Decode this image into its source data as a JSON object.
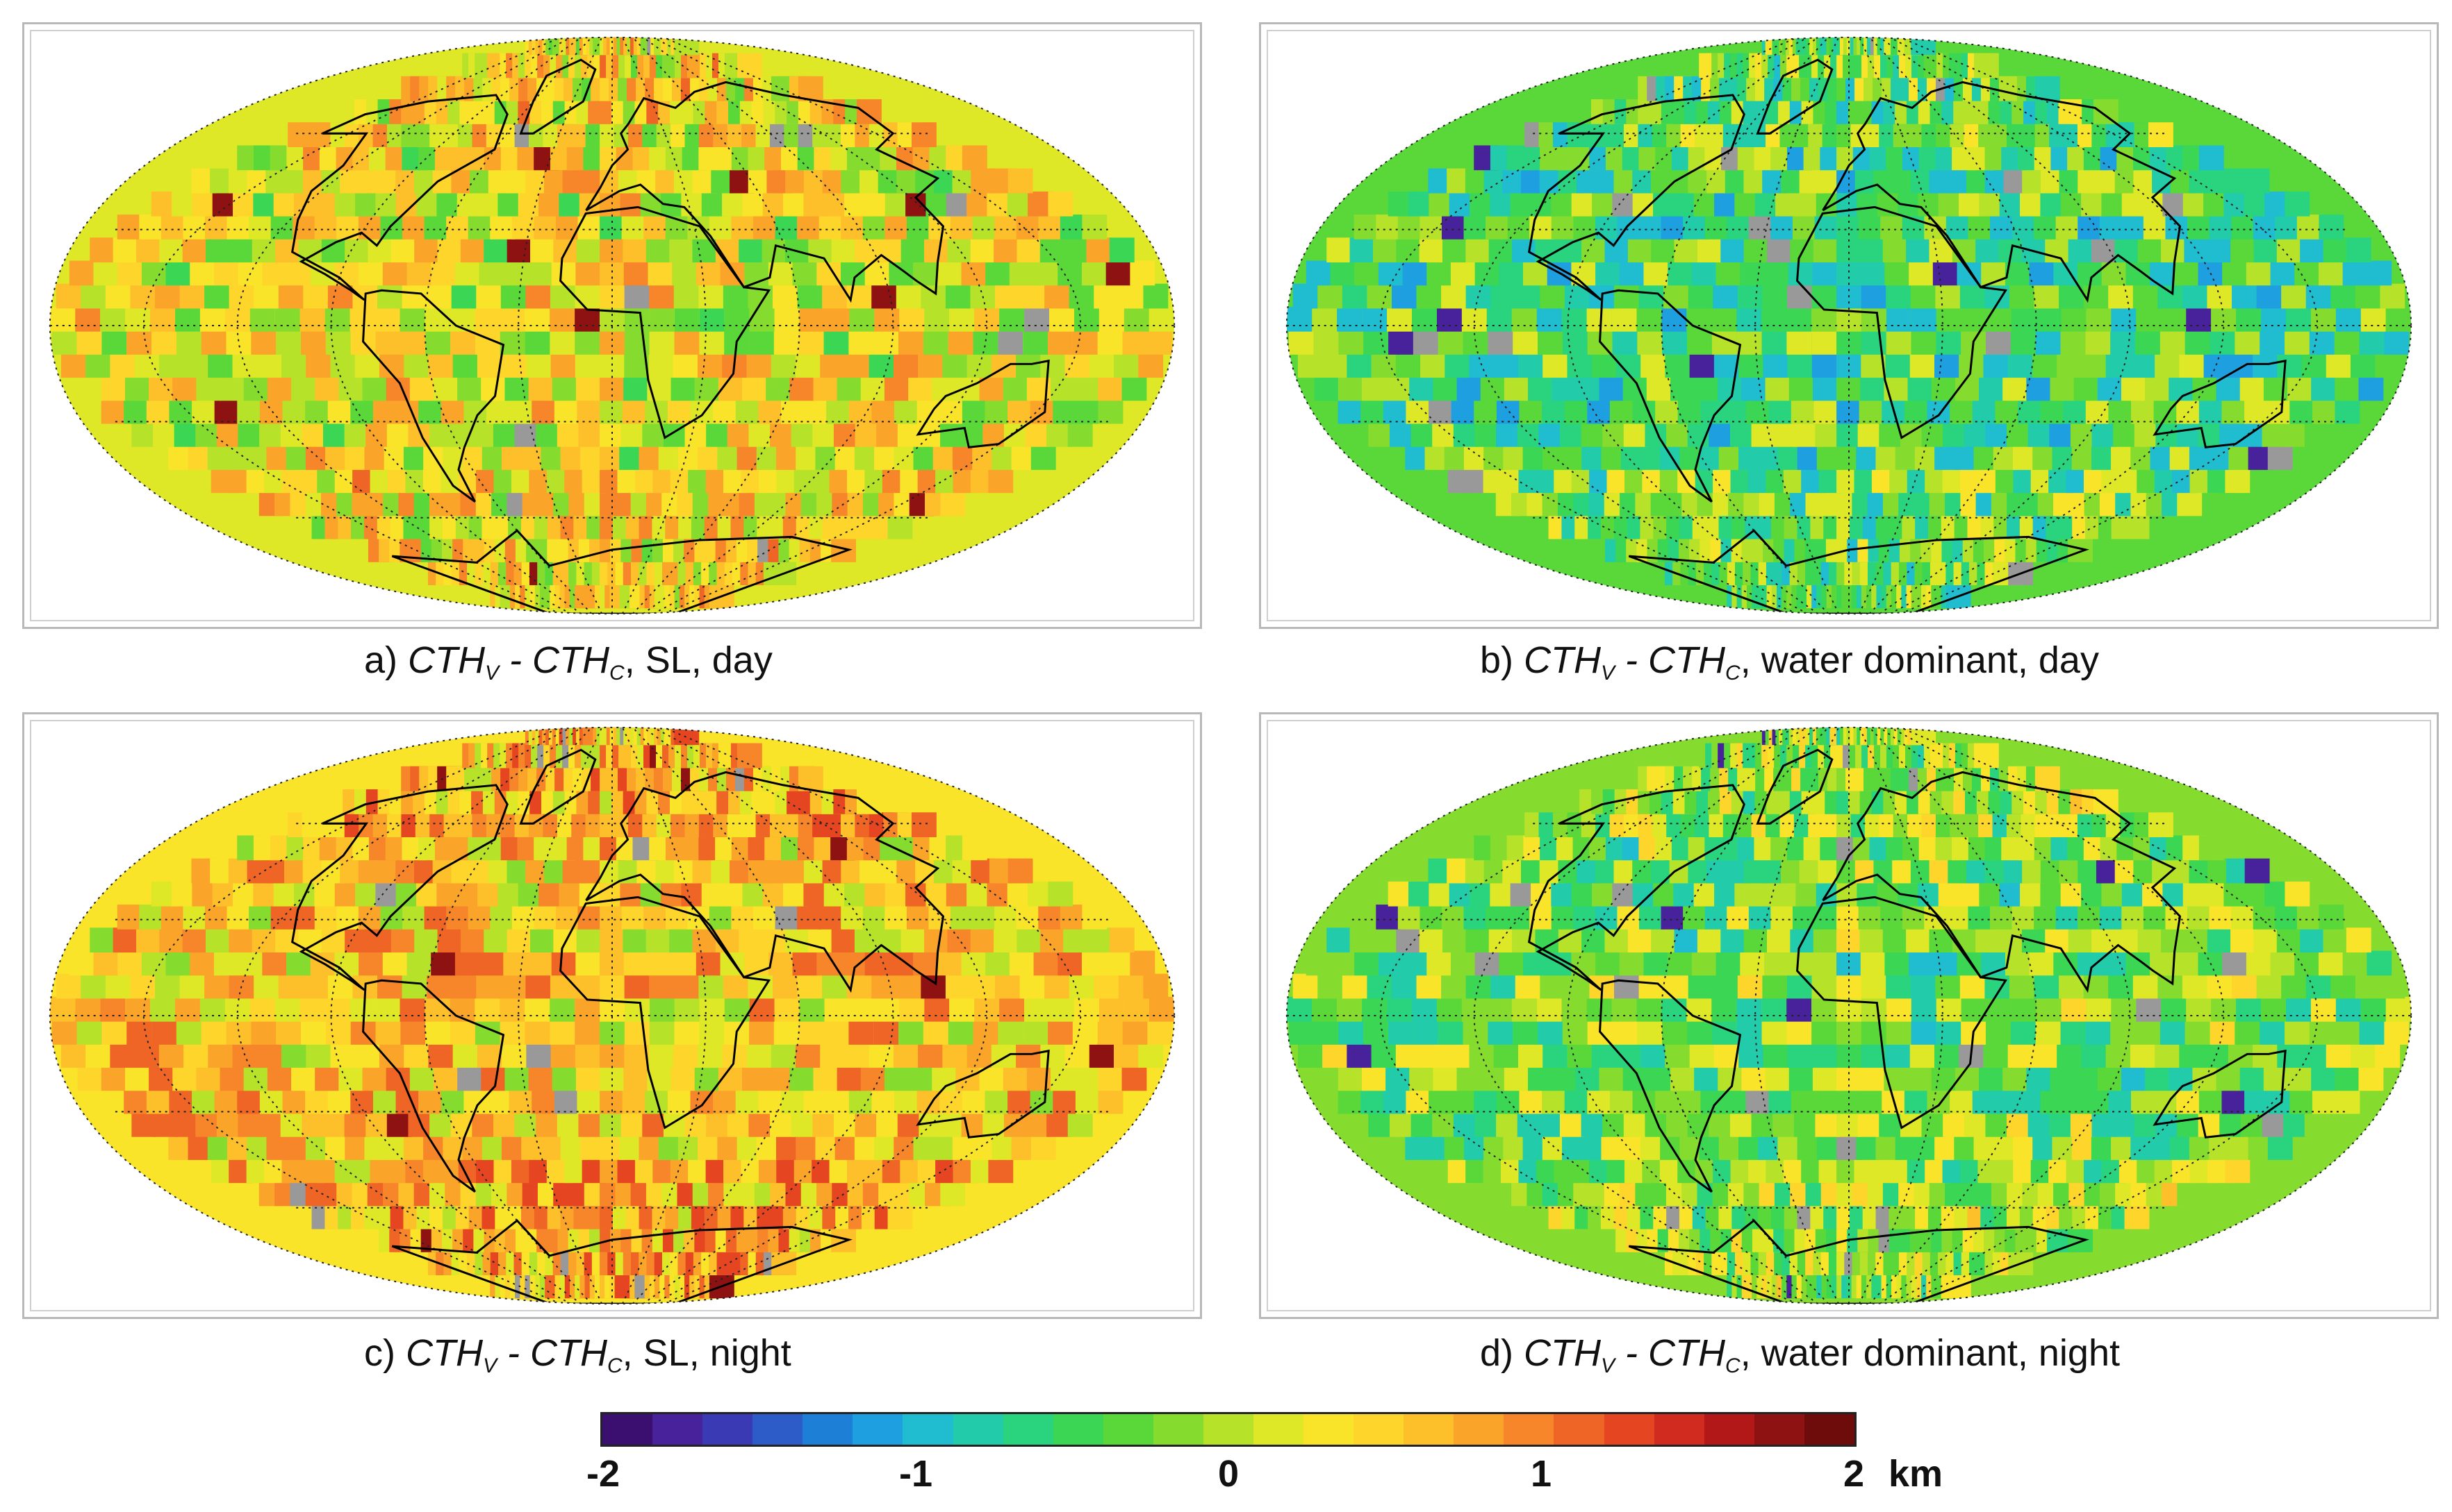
{
  "panels": [
    {
      "id": "a",
      "caption_prefix": "a) ",
      "var1": "CTH",
      "sub1": "V",
      "sep": " - ",
      "var2": "CTH",
      "sub2": "C",
      "caption_suffix": ", SL, day"
    },
    {
      "id": "b",
      "caption_prefix": "b) ",
      "var1": "CTH",
      "sub1": "V",
      "sep": " - ",
      "var2": "CTH",
      "sub2": "C",
      "caption_suffix": ", water dominant, day"
    },
    {
      "id": "c",
      "caption_prefix": "c) ",
      "var1": "CTH",
      "sub1": "V",
      "sep": " - ",
      "var2": "CTH",
      "sub2": "C",
      "caption_suffix": ", SL, night"
    },
    {
      "id": "d",
      "caption_prefix": "d) ",
      "var1": "CTH",
      "sub1": "V",
      "sep": " - ",
      "var2": "CTH",
      "sub2": "C",
      "caption_suffix": ", water dominant, night"
    }
  ],
  "colorbar": {
    "min": -2,
    "max": 2,
    "unit": "km",
    "ticks": [
      "-2",
      "-1",
      "0",
      "1",
      "2"
    ],
    "colors": [
      "#3b0f6f",
      "#47229a",
      "#3a3ab4",
      "#2d5cc8",
      "#1e7fd6",
      "#1ea0e0",
      "#20bcd0",
      "#22ccaa",
      "#2ad47e",
      "#3ad654",
      "#5ad83a",
      "#86dc2e",
      "#b6e22a",
      "#dfe826",
      "#fae42a",
      "#fed52a",
      "#fdbf2a",
      "#fba42a",
      "#f7862a",
      "#ef6526",
      "#e64522",
      "#d12a1e",
      "#b31818",
      "#8f1212",
      "#6e0c0c"
    ]
  },
  "legend_colors": {
    "missing": "#999999",
    "coast": "#000000",
    "grid": "#222222"
  },
  "panel_fields": [
    {
      "bias": 0.25
    },
    {
      "bias": -0.45
    },
    {
      "bias": 0.55
    },
    {
      "bias": -0.25
    }
  ]
}
